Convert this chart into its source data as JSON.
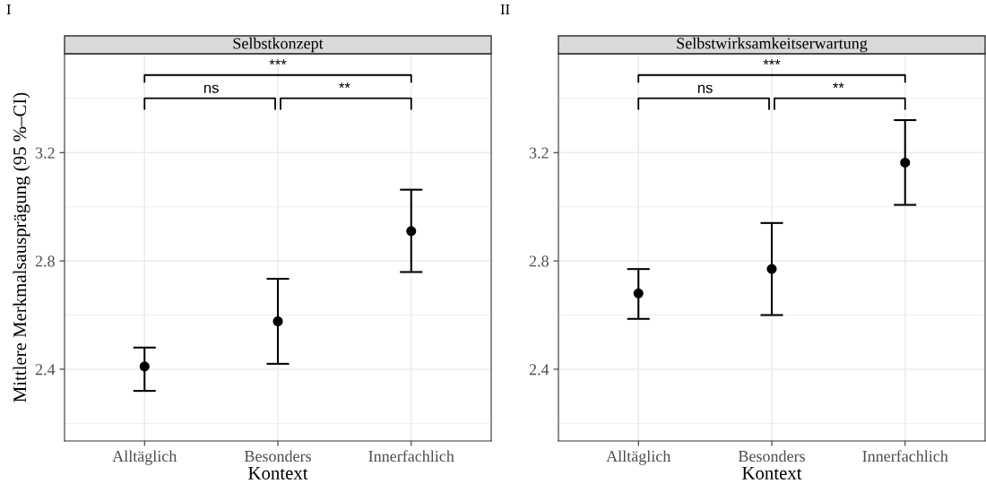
{
  "chart_data": [
    {
      "type": "scatter",
      "title": "Selbstkonzept",
      "xlabel": "Kontext",
      "ylabel": "Mittlere Merkmalsausprägung (95 %–CI)",
      "categories": [
        "Alltäglich",
        "Besonders",
        "Innerfachlich"
      ],
      "values": [
        2.41,
        2.577,
        2.91
      ],
      "errors": [
        [
          2.32,
          2.48
        ],
        [
          2.42,
          2.734
        ],
        [
          2.759,
          3.063
        ]
      ],
      "color": "#000000",
      "marker": "circle",
      "ylim": [
        2.135,
        3.565
      ],
      "yticks": [
        2.4,
        2.8,
        3.2
      ],
      "grid": true,
      "annotations": [
        "I",
        "ns",
        "**",
        "***"
      ]
    },
    {
      "type": "scatter",
      "title": "Selbstwirksamkeitserwartung",
      "xlabel": "Kontext",
      "categories": [
        "Alltäglich",
        "Besonders",
        "Innerfachlich"
      ],
      "values": [
        2.68,
        2.77,
        3.163
      ],
      "errors": [
        [
          2.586,
          2.77
        ],
        [
          2.6,
          2.94
        ],
        [
          3.007,
          3.32
        ]
      ],
      "color": "#000000",
      "marker": "circle",
      "ylim": [
        2.135,
        3.565
      ],
      "yticks": [
        2.4,
        2.8,
        3.2
      ],
      "grid": true,
      "annotations": [
        "II",
        "ns",
        "**",
        "***"
      ]
    }
  ]
}
